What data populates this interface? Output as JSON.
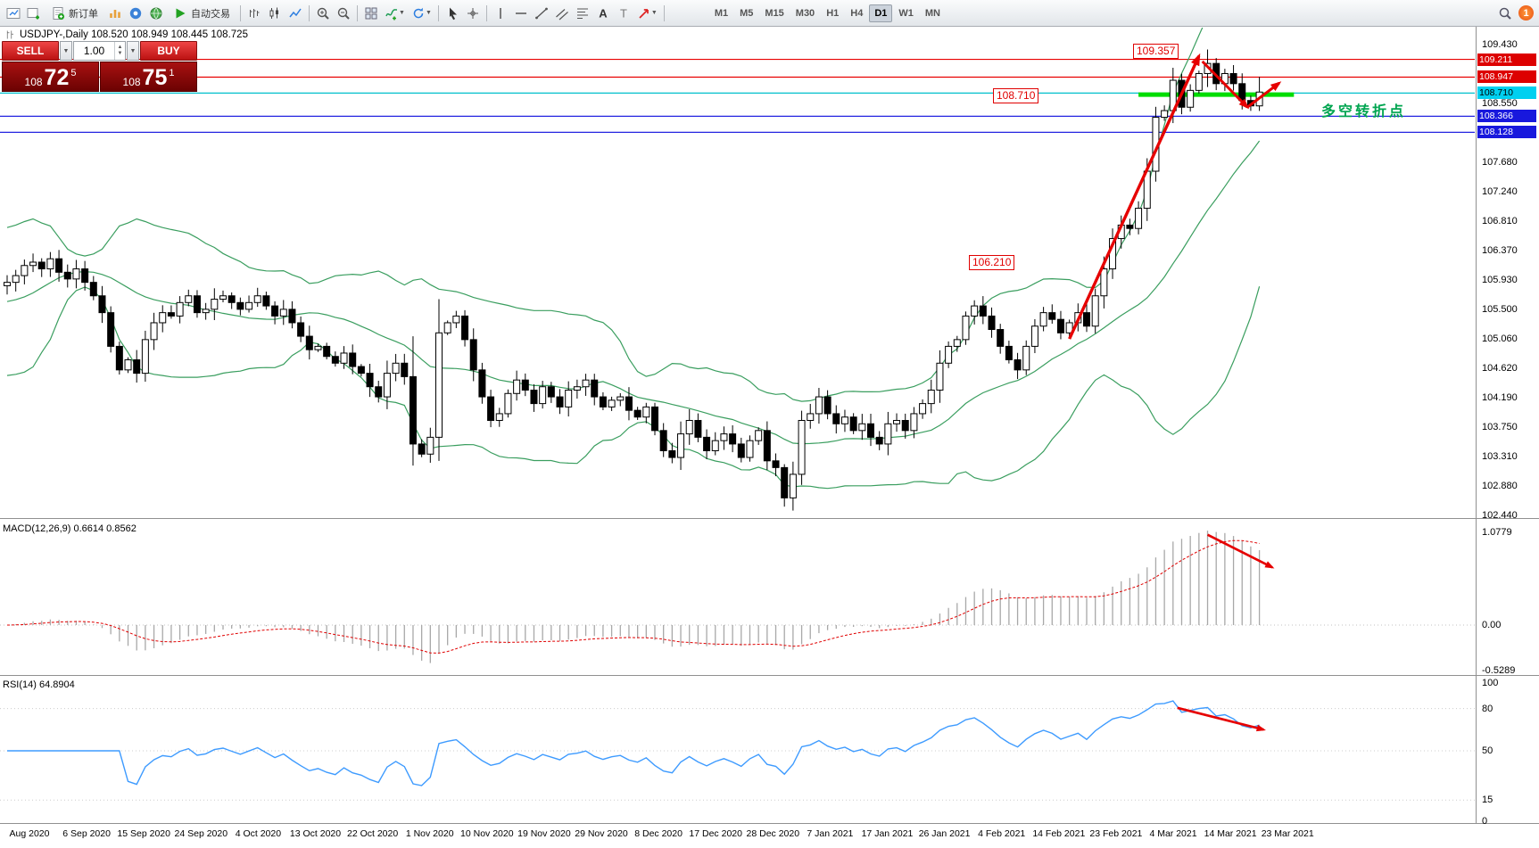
{
  "toolbar": {
    "new_order": "新订单",
    "autotrading": "自动交易",
    "timeframes": [
      "M1",
      "M5",
      "M15",
      "M30",
      "H1",
      "H4",
      "D1",
      "W1",
      "MN"
    ],
    "active_timeframe": "D1",
    "notification_count": "1"
  },
  "glyphs": {
    "caret_down": "▼",
    "spin_up": "▲",
    "spin_down": "▼"
  },
  "symbol_header": "USDJPY-,Daily 108.520 108.949 108.445 108.725",
  "trade_panel": {
    "sell_label": "SELL",
    "buy_label": "BUY",
    "volume": "1.00",
    "sell_price": {
      "small": "108",
      "big": "72",
      "sup": "5"
    },
    "buy_price": {
      "small": "108",
      "big": "75",
      "sup": "1"
    }
  },
  "annotations": {
    "peak_label": "109.357",
    "support_label": "108.710",
    "base_label": "106.210",
    "turning_point": "多空转折点"
  },
  "price_scale": {
    "ticks": [
      "109.430",
      "108.550",
      "107.680",
      "107.240",
      "106.810",
      "106.370",
      "105.930",
      "105.500",
      "105.060",
      "104.620",
      "104.190",
      "103.750",
      "103.310",
      "102.880",
      "102.440"
    ],
    "badges": [
      {
        "text": "109.211",
        "price": 109.211,
        "bg": "#dd0000",
        "fg": "#ffffff"
      },
      {
        "text": "108.947",
        "price": 108.947,
        "bg": "#dd0000",
        "fg": "#ffffff"
      },
      {
        "text": "108.710",
        "price": 108.71,
        "bg": "#00d0f0",
        "fg": "#000000"
      },
      {
        "text": "108.366",
        "price": 108.366,
        "bg": "#1818dd",
        "fg": "#ffffff"
      },
      {
        "text": "108.128",
        "price": 108.128,
        "bg": "#1818dd",
        "fg": "#ffffff"
      }
    ]
  },
  "macd_panel": {
    "label": "MACD(12,26,9) 0.6614 0.8562",
    "scale_labels": [
      "1.0779",
      "0.00",
      "-0.5289"
    ]
  },
  "rsi_panel": {
    "label": "RSI(14) 64.8904",
    "scale_labels": [
      "100",
      "80",
      "50",
      "15",
      "0"
    ]
  },
  "date_axis": [
    "Aug 2020",
    "6 Sep 2020",
    "15 Sep 2020",
    "24 Sep 2020",
    "4 Oct 2020",
    "13 Oct 2020",
    "22 Oct 2020",
    "1 Nov 2020",
    "10 Nov 2020",
    "19 Nov 2020",
    "29 Nov 2020",
    "8 Dec 2020",
    "17 Dec 2020",
    "28 Dec 2020",
    "7 Jan 2021",
    "17 Jan 2021",
    "26 Jan 2021",
    "4 Feb 2021",
    "14 Feb 2021",
    "23 Feb 2021",
    "4 Mar 2021",
    "14 Mar 2021",
    "23 Mar 2021"
  ],
  "chart_data": {
    "type": "candlestick",
    "symbol": "USDJPY",
    "period": "Daily",
    "last_ohlc": {
      "open": "108.520",
      "high": "108.949",
      "low": "108.445",
      "close": "108.725"
    },
    "ylim": [
      102.44,
      109.43
    ],
    "closes": [
      105.9,
      106.0,
      106.15,
      106.2,
      106.1,
      106.25,
      106.05,
      105.95,
      106.1,
      105.9,
      105.7,
      105.45,
      104.95,
      104.6,
      104.75,
      104.55,
      105.05,
      105.3,
      105.45,
      105.4,
      105.6,
      105.7,
      105.45,
      105.5,
      105.65,
      105.7,
      105.6,
      105.5,
      105.6,
      105.7,
      105.55,
      105.4,
      105.5,
      105.3,
      105.1,
      104.9,
      104.95,
      104.8,
      104.7,
      104.85,
      104.65,
      104.55,
      104.35,
      104.2,
      104.55,
      104.7,
      104.5,
      103.5,
      103.35,
      103.6,
      105.15,
      105.3,
      105.4,
      105.05,
      104.6,
      104.2,
      103.85,
      103.95,
      104.25,
      104.45,
      104.3,
      104.1,
      104.35,
      104.2,
      104.05,
      104.3,
      104.35,
      104.45,
      104.2,
      104.05,
      104.15,
      104.2,
      104.0,
      103.9,
      104.05,
      103.7,
      103.4,
      103.3,
      103.65,
      103.85,
      103.6,
      103.4,
      103.55,
      103.65,
      103.5,
      103.3,
      103.55,
      103.7,
      103.25,
      103.15,
      102.7,
      103.05,
      103.85,
      103.95,
      104.2,
      103.95,
      103.8,
      103.9,
      103.7,
      103.8,
      103.6,
      103.5,
      103.8,
      103.85,
      103.7,
      103.95,
      104.1,
      104.3,
      104.7,
      104.95,
      105.05,
      105.4,
      105.55,
      105.4,
      105.2,
      104.95,
      104.75,
      104.6,
      104.95,
      105.25,
      105.45,
      105.35,
      105.15,
      105.3,
      105.45,
      105.25,
      105.7,
      106.1,
      106.55,
      106.75,
      106.7,
      107.0,
      107.55,
      108.35,
      108.45,
      108.9,
      108.5,
      108.75,
      109.0,
      109.15,
      108.85,
      109.0,
      108.85,
      108.6,
      108.52,
      108.725
    ],
    "wick_overrides": {
      "47": [
        105.1,
        103.18
      ],
      "50": [
        105.65,
        103.25
      ],
      "90": [
        103.2,
        102.57
      ],
      "139": [
        109.357,
        108.8
      ],
      "145": [
        108.949,
        108.445
      ]
    },
    "indicators": {
      "bollinger": {
        "period": 20,
        "deviation": 2,
        "color": "#3a9e5f"
      },
      "macd": {
        "fast": 12,
        "slow": 26,
        "signal": 9,
        "last_main": 0.6614,
        "last_signal": 0.8562,
        "scale": [
          1.0779,
          0.0,
          -0.5289
        ]
      },
      "rsi": {
        "period": 14,
        "last": 64.8904,
        "levels": [
          80,
          50,
          15
        ]
      }
    },
    "h_lines": [
      {
        "price": 109.211,
        "color": "#e80000"
      },
      {
        "price": 108.947,
        "color": "#e80000"
      },
      {
        "price": 108.71,
        "color": "#00c0cc"
      },
      {
        "price": 108.366,
        "color": "#2424e0"
      },
      {
        "price": 108.128,
        "color": "#2424e0"
      }
    ],
    "support_segment": {
      "from_bar": 131,
      "to_bar": 149,
      "price": 108.7,
      "color": "#00dd00",
      "width": 5
    },
    "arrows": [
      {
        "pane": "main",
        "from_bar": 123.0,
        "from_val": 105.06,
        "to_bar": 138.0,
        "to_val": 109.26,
        "width": 3.4
      },
      {
        "pane": "main",
        "from_bar": 138.4,
        "from_val": 109.18,
        "to_bar": 143.6,
        "to_val": 108.5,
        "width": 3.0
      },
      {
        "pane": "main",
        "from_bar": 143.6,
        "from_val": 108.5,
        "to_bar": 147.3,
        "to_val": 108.86,
        "width": 3.0
      },
      {
        "pane": "macd",
        "from_bar": 139.0,
        "from_val": 1.05,
        "to_bar": 146.5,
        "to_val": 0.67,
        "width": 2.6
      },
      {
        "pane": "rsi",
        "from_bar": 135.5,
        "from_val": 80.5,
        "to_bar": 145.5,
        "to_val": 65.0,
        "width": 2.6
      }
    ]
  }
}
